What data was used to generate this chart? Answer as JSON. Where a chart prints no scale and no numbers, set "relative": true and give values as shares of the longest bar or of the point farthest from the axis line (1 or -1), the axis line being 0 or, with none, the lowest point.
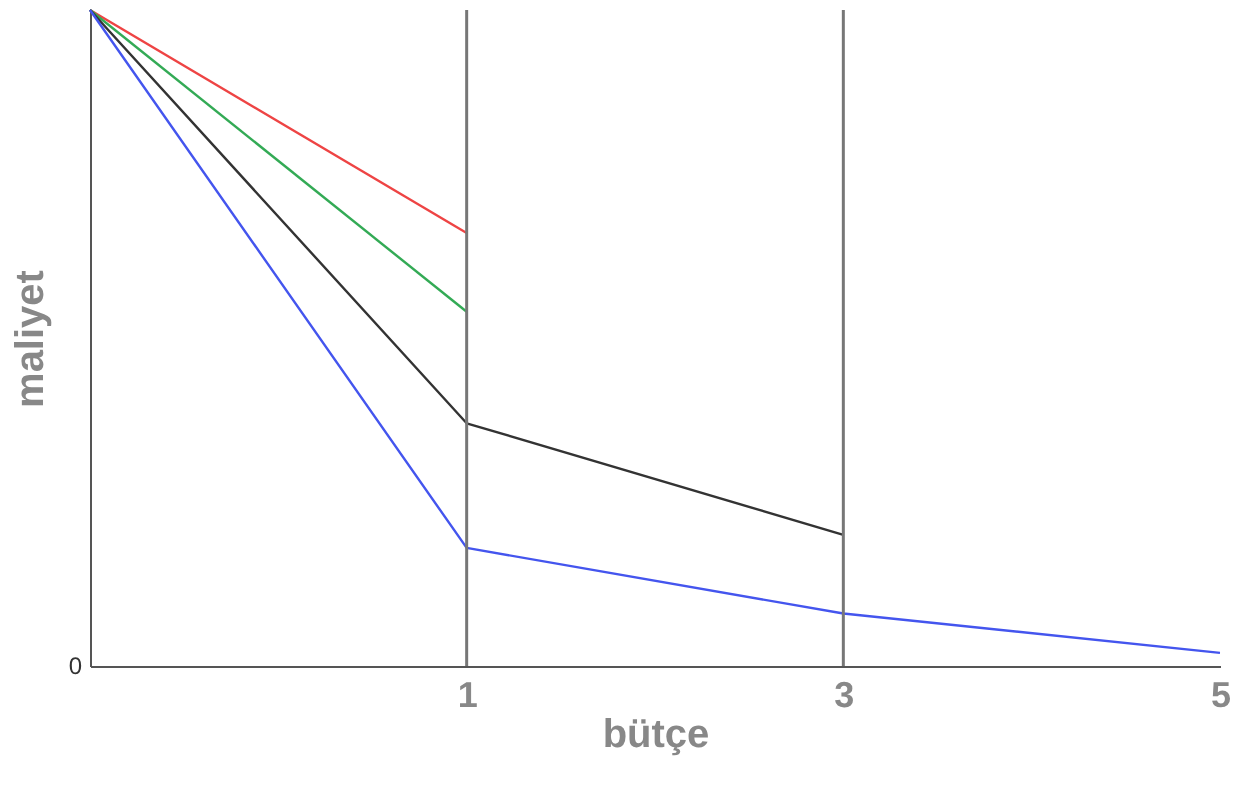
{
  "chart_data": {
    "type": "line",
    "xlabel": "bütçe",
    "ylabel": "maliyet",
    "relative": true,
    "categories": [
      null,
      "1",
      "3",
      "5"
    ],
    "series": [
      {
        "color": "#ee4444",
        "values": [
          1,
          0.66,
          null,
          null
        ]
      },
      {
        "color": "#33aa55",
        "values": [
          1,
          0.54,
          null,
          null
        ]
      },
      {
        "color": "#333333",
        "values": [
          1,
          0.37,
          0.2,
          null
        ]
      },
      {
        "color": "#4455ee",
        "values": [
          1,
          0.18,
          0.08,
          0.02
        ]
      }
    ],
    "ref_lines": [
      {
        "axis": "x",
        "value": "1",
        "color": "#777777"
      },
      {
        "axis": "x",
        "value": "3",
        "color": "#777777"
      }
    ],
    "annotations": [
      "0"
    ],
    "grid": false,
    "marker": "none",
    "line_style": "solid"
  }
}
